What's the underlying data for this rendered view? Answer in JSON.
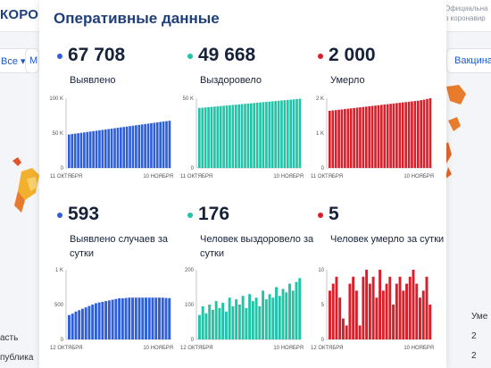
{
  "background": {
    "brand": "КОРОНАВИ",
    "info_line1": "Официальна",
    "info_line2": "о коронавир",
    "chips": [
      "Все ▾",
      "М",
      "Вакцинац"
    ],
    "list_left": [
      "асть",
      "публика"
    ],
    "list_right": [
      "Уме",
      "2",
      "2"
    ]
  },
  "card": {
    "title": "Оперативные данные",
    "stats": [
      {
        "value": "67 708",
        "label": "Выявлено",
        "color": "#2f5fd8",
        "chart": {
          "type": "bar",
          "yticks": [
            "100 K",
            "50 K",
            "0"
          ],
          "ymax": 100000,
          "x_start": "11 ОКТЯБРЯ",
          "x_end": "10 НОЯБРЯ"
        }
      },
      {
        "value": "49 668",
        "label": "Выздоровело",
        "color": "#22c3a6",
        "chart": {
          "type": "bar",
          "yticks": [
            "50 K",
            "0"
          ],
          "ymax": 50000,
          "x_start": "11 ОКТЯБРЯ",
          "x_end": "10 НОЯБРЯ"
        }
      },
      {
        "value": "2 000",
        "label": "Умерло",
        "color": "#d81f2a",
        "chart": {
          "type": "bar",
          "yticks": [
            "2 K",
            "1 K",
            "0"
          ],
          "ymax": 2000,
          "x_start": "11 ОКТЯБРЯ",
          "x_end": "10 НОЯБРЯ"
        }
      },
      {
        "value": "593",
        "label": "Выявлено случаев за сутки",
        "color": "#2f5fd8",
        "chart": {
          "type": "bar",
          "yticks": [
            "1 K",
            "500",
            "0"
          ],
          "ymax": 1000,
          "x_start": "12 ОКТЯБРЯ",
          "x_end": "10 НОЯБРЯ"
        }
      },
      {
        "value": "176",
        "label": "Человек выздоровело за сутки",
        "color": "#22c3a6",
        "chart": {
          "type": "bar",
          "yticks": [
            "200",
            "100",
            "0"
          ],
          "ymax": 200,
          "x_start": "12 ОКТЯБРЯ",
          "x_end": "10 НОЯБРЯ"
        }
      },
      {
        "value": "5",
        "label": "Человек умерло за сутки",
        "color": "#d81f2a",
        "chart": {
          "type": "bar",
          "yticks": [
            "10",
            "5",
            "0"
          ],
          "ymax": 10,
          "x_start": "12 ОКТЯБРЯ",
          "x_end": "10 НОЯБРЯ"
        }
      }
    ]
  },
  "chart_data": [
    {
      "type": "bar",
      "title": "Выявлено",
      "ylim": [
        0,
        100000
      ],
      "x_start": "11 ОКТЯБРЯ",
      "x_end": "10 НОЯБРЯ",
      "values": [
        48000,
        48600,
        49200,
        49800,
        50400,
        51000,
        51600,
        52200,
        52800,
        53400,
        54000,
        54600,
        55200,
        55800,
        56400,
        57000,
        57600,
        58200,
        58800,
        59400,
        60000,
        60600,
        61200,
        61800,
        62400,
        63000,
        63600,
        64200,
        64800,
        65400,
        66000,
        66600,
        67100,
        67708
      ]
    },
    {
      "type": "bar",
      "title": "Выздоровело",
      "ylim": [
        0,
        50000
      ],
      "x_start": "11 ОКТЯБРЯ",
      "x_end": "10 НОЯБРЯ",
      "values": [
        43000,
        43200,
        43400,
        43600,
        43800,
        44000,
        44200,
        44400,
        44600,
        44800,
        45000,
        45200,
        45400,
        45600,
        45800,
        46000,
        46200,
        46400,
        46600,
        46800,
        47000,
        47200,
        47400,
        47600,
        47800,
        48000,
        48200,
        48400,
        48600,
        48800,
        49000,
        49200,
        49400,
        49668
      ]
    },
    {
      "type": "bar",
      "title": "Умерло",
      "ylim": [
        0,
        2000
      ],
      "x_start": "11 ОКТЯБРЯ",
      "x_end": "10 НОЯБРЯ",
      "values": [
        1640,
        1650,
        1660,
        1670,
        1680,
        1690,
        1700,
        1710,
        1720,
        1730,
        1740,
        1750,
        1760,
        1770,
        1780,
        1790,
        1800,
        1810,
        1820,
        1830,
        1840,
        1850,
        1860,
        1870,
        1880,
        1890,
        1900,
        1910,
        1920,
        1930,
        1945,
        1960,
        1980,
        2000
      ]
    },
    {
      "type": "bar",
      "title": "Выявлено случаев за сутки",
      "ylim": [
        0,
        1000
      ],
      "x_start": "12 ОКТЯБРЯ",
      "x_end": "10 НОЯБРЯ",
      "values": [
        350,
        370,
        400,
        420,
        440,
        460,
        480,
        500,
        520,
        530,
        540,
        550,
        560,
        570,
        580,
        590,
        590,
        595,
        600,
        600,
        600,
        600,
        600,
        600,
        600,
        600,
        600,
        600,
        600,
        595,
        593
      ]
    },
    {
      "type": "bar",
      "title": "Человек выздоровело за сутки",
      "ylim": [
        0,
        200
      ],
      "x_start": "12 ОКТЯБРЯ",
      "x_end": "10 НОЯБРЯ",
      "values": [
        70,
        95,
        75,
        100,
        85,
        110,
        90,
        105,
        80,
        120,
        95,
        115,
        100,
        125,
        90,
        130,
        110,
        120,
        95,
        140,
        115,
        130,
        120,
        150,
        125,
        145,
        135,
        160,
        140,
        165,
        176
      ]
    },
    {
      "type": "bar",
      "title": "Человек умерло за сутки",
      "ylim": [
        0,
        10
      ],
      "x_start": "12 ОКТЯБРЯ",
      "x_end": "10 НОЯБРЯ",
      "values": [
        7,
        8,
        9,
        6,
        3,
        2,
        8,
        9,
        7,
        2,
        9,
        10,
        8,
        9,
        6,
        10,
        7,
        8,
        9,
        5,
        8,
        9,
        7,
        8,
        9,
        10,
        8,
        6,
        7,
        9,
        5
      ]
    }
  ]
}
